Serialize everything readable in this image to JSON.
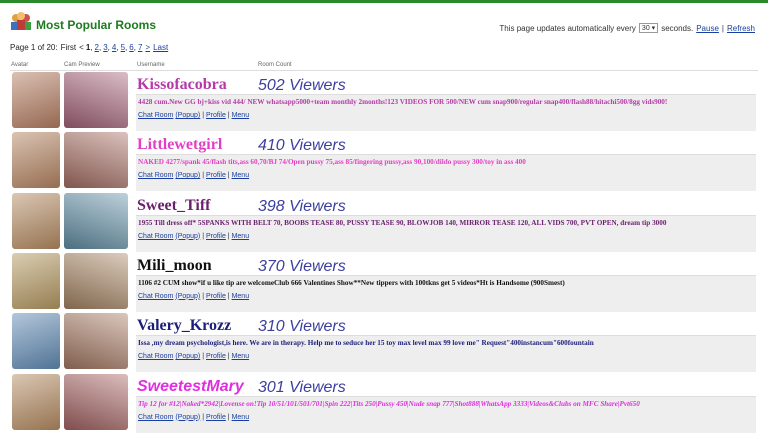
{
  "header": {
    "title": "Most Popular Rooms",
    "update_text": "This page updates automatically every",
    "interval": "30",
    "seconds": "seconds.",
    "pause": "Pause",
    "divider": "|",
    "refresh": "Refresh"
  },
  "pagination": {
    "label": "Page 1 of 20:",
    "first": "First",
    "prev": "<",
    "pages": [
      "1",
      "2",
      "3",
      "4",
      "5",
      "6",
      "7"
    ],
    "separator": ",",
    "next": ">",
    "last": "Last"
  },
  "columns": [
    "Avatar",
    "Cam Preview",
    "Username",
    "Room Count"
  ],
  "room_links": {
    "chat_room": "Chat Room",
    "popup": "(Popup)",
    "divider": "|",
    "profile": "Profile",
    "menu": "Menu"
  },
  "rooms": [
    {
      "username": "Kissofacobra",
      "viewers": "502 Viewers",
      "color": "#b53aa8",
      "italic": false,
      "subject": "4428 cum.New GG bj+kiss vid 444/ NEW whatsapp5000+team monthly 2months!123 VIDEOS FOR 500/NEW cum snap900/regular snap400/flash88/hitachi500/8gg vids900!"
    },
    {
      "username": "Littlewetgirl",
      "viewers": "410 Viewers",
      "color": "#e23fc6",
      "italic": false,
      "subject": "NAKED 4277/spank 45/flash tits,ass 60,70/BJ 74/Open pussy 75,ass 85/fingering pussy,ass 90,100/dildo pussy 300/toy in ass 400"
    },
    {
      "username": "Sweet_Tiff",
      "viewers": "398 Viewers",
      "color": "#6b1f6e",
      "italic": false,
      "subject": "1955 Till dress off* 5SPANKS WITH BELT 70, BOOBS TEASE 80, PUSSY TEASE 90, BLOWJOB 140, MIRROR TEASE 120, ALL VIDS 700, PVT OPEN, dream tip 3000"
    },
    {
      "username": "Mili_moon",
      "viewers": "370 Viewers",
      "color": "#111111",
      "italic": false,
      "subject": "1106 #2 CUM show*if u like tip are welcomeClub 666 Valentines Show**New tippers with 100tkns get 5 videos*Ht is Handsome (900Smest)"
    },
    {
      "username": "Valery_Krozz",
      "viewers": "310 Viewers",
      "color": "#1c1f7a",
      "italic": false,
      "subject": "Issa ,my dream psychologist,is here. We are in therapy. Help me to seduce her 15 toy max level max 99 love me\" Request\"400instancum\"600fountain"
    },
    {
      "username": "SweetestMary",
      "viewers": "301 Viewers",
      "color": "#e02ee0",
      "italic": true,
      "subject": "Tip 12 for #12|Naked*2942|Lovense on!Tip 10/51/101/501/701|Spin 222|Tits 250|Pussy 450|Nude snap 777|Shot888|WhatsApp 3333|Videos&Clubs on MFC Share|Pvt650"
    }
  ]
}
